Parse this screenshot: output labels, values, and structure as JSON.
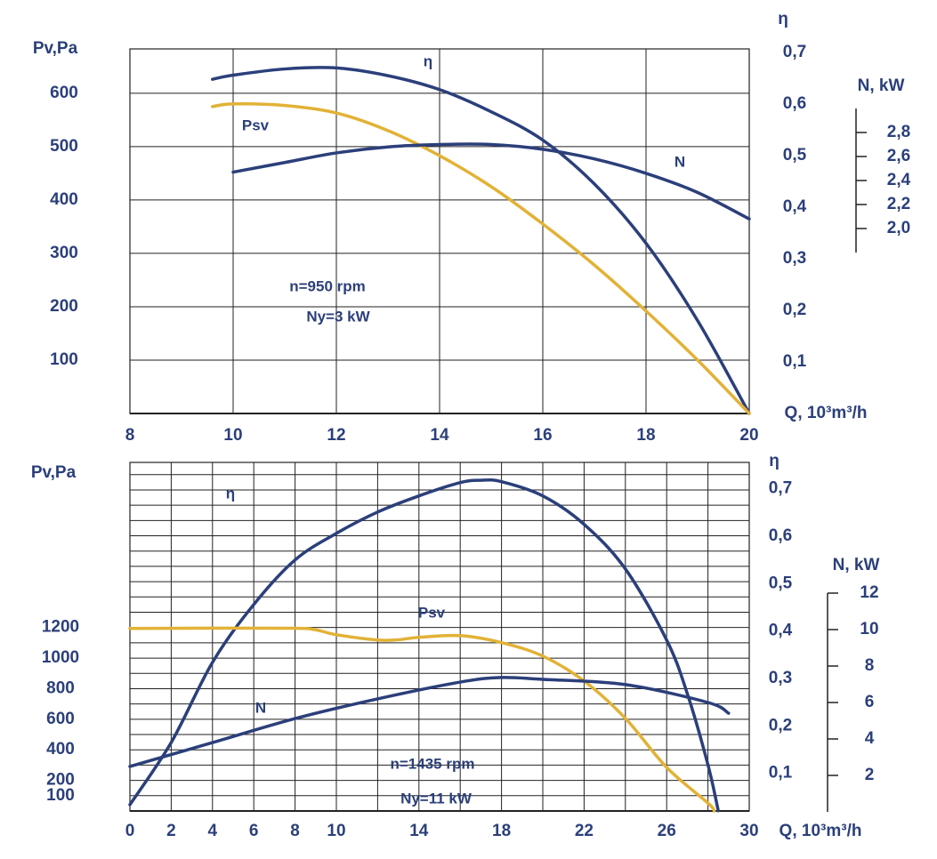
{
  "chart_data": [
    {
      "type": "line",
      "xlabel": "Q, 10³m³/h",
      "ylabel": "Pv,Pa",
      "y2label": "η",
      "y3label": "N, kW",
      "xlim": [
        8,
        20
      ],
      "xticks": [
        8,
        10,
        12,
        14,
        16,
        18,
        20
      ],
      "ylim": [
        0,
        683
      ],
      "yticks": [
        100,
        200,
        300,
        400,
        500,
        600
      ],
      "y2lim": [
        0,
        0.7
      ],
      "y2ticks": [
        {
          "value": 0.1,
          "label": "0,1"
        },
        {
          "value": 0.2,
          "label": "0,2"
        },
        {
          "value": 0.3,
          "label": "0,3"
        },
        {
          "value": 0.4,
          "label": "0,4"
        },
        {
          "value": 0.5,
          "label": "0,5"
        },
        {
          "value": 0.6,
          "label": "0,6"
        },
        {
          "value": 0.7,
          "label": "0,7"
        }
      ],
      "y3lim": [
        1.8,
        3.0
      ],
      "y3ticks": [
        {
          "value": 2.0,
          "label": "2,0"
        },
        {
          "value": 2.2,
          "label": "2,2"
        },
        {
          "value": 2.4,
          "label": "2,4"
        },
        {
          "value": 2.6,
          "label": "2,6"
        },
        {
          "value": 2.8,
          "label": "2,8"
        }
      ],
      "grid": true,
      "series": [
        {
          "name": "η",
          "color": "#2b3f7a",
          "axis": "y2",
          "x": [
            9.6,
            10,
            11,
            12,
            13,
            14,
            15,
            16,
            17,
            18,
            19,
            20
          ],
          "values": [
            0.648,
            0.656,
            0.668,
            0.67,
            0.655,
            0.628,
            0.585,
            0.53,
            0.445,
            0.33,
            0.18,
            0
          ]
        },
        {
          "name": "Psv",
          "color": "#e2b236",
          "axis": "y",
          "x": [
            9.6,
            10,
            11,
            12,
            13,
            14,
            15,
            16,
            17,
            18,
            19,
            20
          ],
          "values": [
            575,
            580,
            577,
            563,
            530,
            483,
            425,
            355,
            278,
            192,
            100,
            0
          ]
        },
        {
          "name": "N",
          "color": "#2b3f7a",
          "axis": "y3",
          "x": [
            10,
            11,
            12,
            13,
            14,
            15,
            16,
            17,
            18,
            19,
            20
          ],
          "values": [
            2.47,
            2.55,
            2.63,
            2.68,
            2.7,
            2.7,
            2.66,
            2.58,
            2.46,
            2.3,
            2.08
          ]
        }
      ],
      "annotations": [
        "n=950 rpm",
        "Ny=3 kW"
      ]
    },
    {
      "type": "line",
      "xlabel": "Q, 10³m³/h",
      "ylabel": "Pv,Pa",
      "y2label": "η",
      "y3label": "N, kW",
      "xlim": [
        0,
        30
      ],
      "xticks": [
        0,
        2,
        4,
        6,
        8,
        10,
        14,
        18,
        22,
        26,
        30
      ],
      "xgrid": [
        2,
        4,
        6,
        8,
        10,
        12,
        14,
        16,
        18,
        20,
        22,
        24,
        26,
        28
      ],
      "ylim": [
        0,
        2280
      ],
      "yticks": [
        100,
        200,
        400,
        600,
        800,
        1000,
        1200
      ],
      "ygrid": [
        100,
        200,
        300,
        400,
        500,
        600,
        700,
        800,
        900,
        1000,
        1100,
        1200,
        1300,
        1400,
        1500,
        1600,
        1700,
        1800,
        1900,
        2000,
        2100,
        2200
      ],
      "y2lim": [
        0,
        0.75
      ],
      "y2ticks": [
        {
          "value": 0.1,
          "label": "0,1"
        },
        {
          "value": 0.2,
          "label": "0,2"
        },
        {
          "value": 0.3,
          "label": "0,3"
        },
        {
          "value": 0.4,
          "label": "0,4"
        },
        {
          "value": 0.5,
          "label": "0,5"
        },
        {
          "value": 0.6,
          "label": "0,6"
        },
        {
          "value": 0.7,
          "label": "0,7"
        }
      ],
      "y3lim": [
        0,
        12
      ],
      "y3ticks": [
        2,
        4,
        6,
        8,
        10,
        12
      ],
      "grid": true,
      "series": [
        {
          "name": "η",
          "color": "#2b3f7a",
          "axis": "y2",
          "x": [
            0,
            2,
            4,
            6,
            8,
            10,
            12,
            14,
            16,
            17,
            18,
            20,
            22,
            24,
            26,
            27,
            28,
            28.5
          ],
          "values": [
            0.034,
            0.165,
            0.334,
            0.456,
            0.55,
            0.606,
            0.651,
            0.685,
            0.713,
            0.718,
            0.715,
            0.685,
            0.625,
            0.531,
            0.381,
            0.268,
            0.118,
            0.021
          ]
        },
        {
          "name": "Psv",
          "color": "#e2b236",
          "axis": "y",
          "x": [
            0,
            4,
            8,
            9,
            10,
            12,
            13,
            14,
            16,
            18,
            20,
            22,
            24,
            26,
            28,
            28.3
          ],
          "values": [
            1194,
            1196,
            1195,
            1185,
            1153,
            1118,
            1120,
            1136,
            1147,
            1101,
            1013,
            850,
            606,
            285,
            52,
            0
          ]
        },
        {
          "name": "N",
          "color": "#2b3f7a",
          "axis": "y3",
          "x": [
            0,
            4,
            8,
            12,
            16,
            18,
            20,
            24,
            28,
            29
          ],
          "values": [
            2.49,
            3.8,
            5.12,
            6.2,
            7.12,
            7.37,
            7.27,
            6.98,
            6.0,
            5.41
          ]
        }
      ],
      "annotations": [
        "n=1435 rpm",
        "Ny=11 kW"
      ]
    }
  ]
}
